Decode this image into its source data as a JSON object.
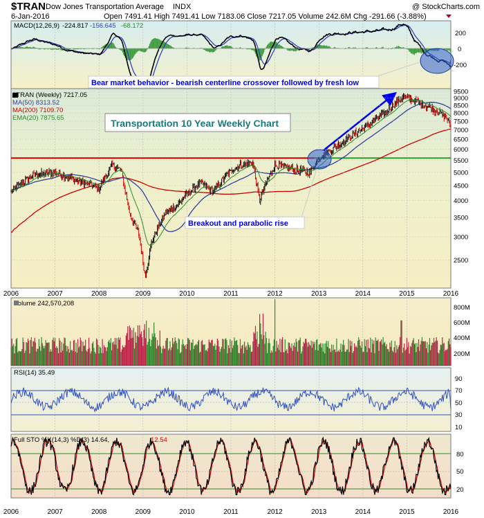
{
  "header": {
    "symbol": "$TRAN",
    "name": "Dow Jones Transportation Average",
    "exchange": "INDX",
    "watermark": "@ StockCharts.com",
    "date": "6-Jan-2016",
    "quote": "Open 7491.41  High 7491.41  Low 7183.06  Close 7217.05  Volume 242.6M  Chg -291.66 (-3.88%)"
  },
  "colors": {
    "panel_bg": "#f4efc8",
    "price_bg_top": "#e8f0dc",
    "macd_bg_top": "#dff0ee",
    "price_up": "#000000",
    "price_down": "#cc0000",
    "ma50": "#3040a0",
    "ma200": "#cc0000",
    "ema20": "#2a8a2a",
    "macd": "#000000",
    "signal": "#3040c0",
    "hist": "#3c9a3c",
    "vol_up": "#2f8a2f",
    "vol_down": "#c0204a",
    "rsi": "#3050c0",
    "sto_k": "#000000",
    "sto_d": "#cc0000",
    "support": "#2a9a2a",
    "resistance": "#cc0000",
    "annotation": "#0000ee"
  },
  "macd_panel": {
    "legend_title": "MACD(12,26,9)",
    "legend_values": [
      "-224.817",
      "-156.645",
      "-68.172"
    ],
    "y_ticks": [
      "200",
      "0",
      "-200"
    ],
    "annotation": "Bear market behavior - bearish centerline crossover followed by fresh low"
  },
  "price_panel": {
    "legend": [
      {
        "label": "$TRAN (Weekly) 7217.05",
        "color": "#000000"
      },
      {
        "label": "MA(50) 8313.52",
        "color": "#3040a0"
      },
      {
        "label": "MA(200) 7109.70",
        "color": "#cc0000"
      },
      {
        "label": "EMA(20) 7875.65",
        "color": "#2a8a2a"
      }
    ],
    "title": "Transportation 10 Year Weekly Chart",
    "annotation": "Breakout and parabolic rise",
    "y_ticks": [
      "9500",
      "9000",
      "8500",
      "8000",
      "7500",
      "7000",
      "6500",
      "6000",
      "5500",
      "5000",
      "4500",
      "4000",
      "3500",
      "3000",
      "2500"
    ]
  },
  "volume_panel": {
    "legend": "Volume 242,570,208",
    "y_ticks": [
      "800M",
      "600M",
      "400M",
      "200M"
    ]
  },
  "rsi_panel": {
    "legend": "RSI(14) 35.49",
    "y_ticks": [
      "90",
      "70",
      "50",
      "30",
      "10"
    ]
  },
  "sto_panel": {
    "legend_k": "Full STO %K(14,3) %D(3) 14.64,",
    "legend_d": "12.54",
    "y_ticks": [
      "80",
      "50",
      "20"
    ]
  },
  "x_axis": {
    "labels": [
      "2006",
      "2007",
      "2008",
      "2009",
      "2010",
      "2011",
      "2012",
      "2013",
      "2014",
      "2015",
      "2016"
    ]
  },
  "chart_data": {
    "type": "line",
    "title": "Transportation 10 Year Weekly Chart",
    "symbol": "$TRAN",
    "period": "Weekly",
    "x_range": [
      "2006",
      "2016"
    ],
    "price_axis_scale": "log",
    "ylim_price": [
      2000,
      9700
    ],
    "series": [
      {
        "name": "$TRAN (Weekly)",
        "x": [
          2006.0,
          2006.5,
          2007.0,
          2007.5,
          2008.0,
          2008.3,
          2008.5,
          2008.7,
          2008.9,
          2009.05,
          2009.2,
          2009.5,
          2009.8,
          2010.0,
          2010.3,
          2010.6,
          2010.9,
          2011.2,
          2011.5,
          2011.65,
          2011.8,
          2012.0,
          2012.5,
          2012.8,
          2013.0,
          2013.5,
          2014.0,
          2014.5,
          2014.9,
          2015.2,
          2015.5,
          2015.7,
          2015.9,
          2016.0
        ],
        "values": [
          4300,
          4900,
          5000,
          4700,
          4400,
          5300,
          5100,
          3600,
          3100,
          2200,
          2900,
          3600,
          3900,
          4200,
          4600,
          4300,
          4900,
          5300,
          5400,
          4000,
          4600,
          5300,
          5100,
          5000,
          5600,
          6300,
          7100,
          8000,
          9100,
          8800,
          8400,
          8100,
          7700,
          7217
        ]
      },
      {
        "name": "MA(50)",
        "last": 8313.52
      },
      {
        "name": "MA(200)",
        "last": 7109.7
      },
      {
        "name": "EMA(20)",
        "last": 7875.65
      }
    ],
    "levels": [
      {
        "value": 5600,
        "color": "#cc0000",
        "to": 2012.9
      },
      {
        "value": 5600,
        "color": "#2a9a2a",
        "from": 2012.9
      }
    ],
    "volume": {
      "last": 242570208,
      "ylim": [
        0,
        900000000
      ]
    },
    "rsi": {
      "last": 35.49,
      "ylim": [
        0,
        100
      ],
      "levels": [
        30,
        70
      ]
    },
    "stochastic": {
      "k": 14.64,
      "d": 12.54,
      "levels": [
        20,
        80
      ]
    }
  }
}
